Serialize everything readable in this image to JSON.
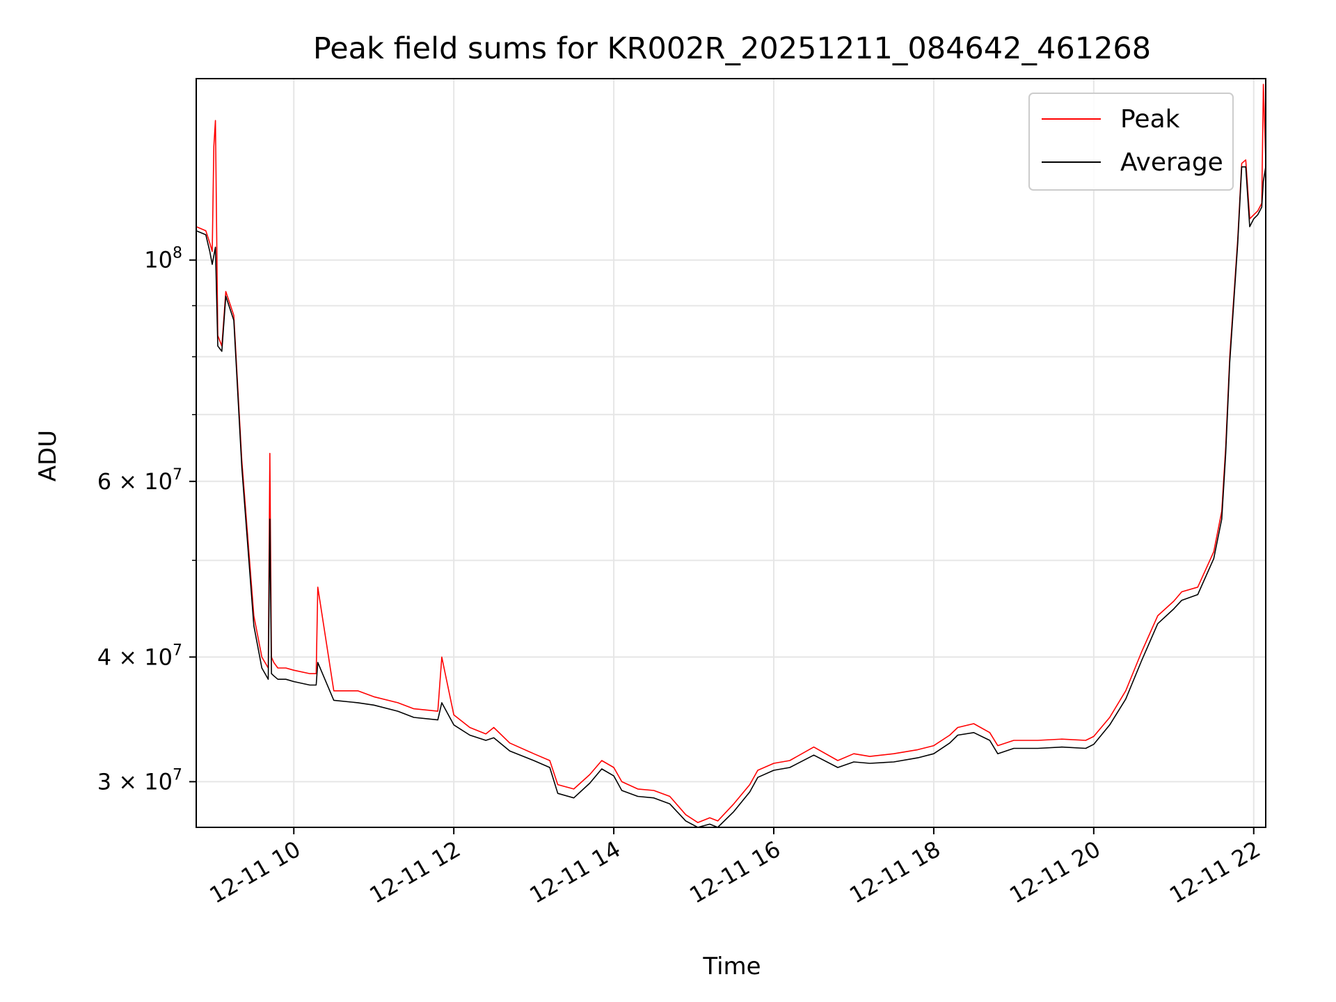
{
  "chart_data": {
    "type": "line",
    "title": "Peak field sums for KR002R_20251211_084642_461268",
    "xlabel": "Time",
    "ylabel": "ADU",
    "yscale": "log",
    "grid": true,
    "legend_position": "upper right",
    "xlim_hours": [
      8.78,
      22.15
    ],
    "ylim": [
      27000000,
      152000000
    ],
    "x_ticks": [
      {
        "value": 10,
        "label": "12-11 10"
      },
      {
        "value": 12,
        "label": "12-11 12"
      },
      {
        "value": 14,
        "label": "12-11 14"
      },
      {
        "value": 16,
        "label": "12-11 16"
      },
      {
        "value": 18,
        "label": "12-11 18"
      },
      {
        "value": 20,
        "label": "12-11 20"
      },
      {
        "value": 22,
        "label": "12-11 22"
      }
    ],
    "y_major_ticks": [
      {
        "value": 30000000,
        "label": "3 × 10",
        "exp": "7"
      },
      {
        "value": 40000000,
        "label": "4 × 10",
        "exp": "7"
      },
      {
        "value": 60000000,
        "label": "6 × 10",
        "exp": "7"
      },
      {
        "value": 100000000,
        "label": "10",
        "exp": "8"
      }
    ],
    "y_minor_ticks": [
      50000000,
      70000000,
      80000000,
      90000000
    ],
    "series": [
      {
        "name": "Peak",
        "color": "#ff0000",
        "x": [
          8.78,
          8.9,
          8.95,
          8.98,
          9.0,
          9.02,
          9.05,
          9.1,
          9.15,
          9.25,
          9.35,
          9.5,
          9.6,
          9.68,
          9.7,
          9.72,
          9.75,
          9.8,
          9.9,
          10.0,
          10.2,
          10.28,
          10.3,
          10.5,
          10.8,
          11.0,
          11.3,
          11.5,
          11.8,
          11.85,
          12.0,
          12.2,
          12.4,
          12.5,
          12.7,
          13.0,
          13.2,
          13.3,
          13.5,
          13.7,
          13.85,
          14.0,
          14.1,
          14.3,
          14.5,
          14.7,
          14.9,
          15.05,
          15.2,
          15.3,
          15.5,
          15.7,
          15.8,
          16.0,
          16.2,
          16.5,
          16.8,
          17.0,
          17.2,
          17.5,
          17.8,
          18.0,
          18.2,
          18.3,
          18.5,
          18.7,
          18.8,
          19.0,
          19.3,
          19.6,
          19.9,
          20.0,
          20.2,
          20.4,
          20.6,
          20.8,
          21.0,
          21.1,
          21.3,
          21.5,
          21.6,
          21.65,
          21.7,
          21.8,
          21.85,
          21.9,
          21.95,
          22.0,
          22.05,
          22.1,
          22.12,
          22.15
        ],
        "values": [
          108000000,
          107000000,
          104000000,
          102000000,
          130000000,
          138000000,
          84000000,
          82000000,
          93000000,
          88000000,
          63000000,
          44000000,
          40000000,
          39000000,
          64000000,
          40000000,
          39500000,
          39000000,
          39000000,
          38800000,
          38500000,
          38500000,
          47000000,
          37000000,
          37000000,
          36500000,
          36000000,
          35500000,
          35300000,
          40000000,
          35000000,
          34000000,
          33500000,
          34000000,
          32800000,
          32000000,
          31500000,
          29800000,
          29500000,
          30500000,
          31500000,
          31000000,
          30000000,
          29500000,
          29400000,
          29000000,
          27800000,
          27300000,
          27600000,
          27400000,
          28500000,
          29800000,
          30800000,
          31300000,
          31500000,
          32500000,
          31500000,
          32000000,
          31800000,
          32000000,
          32300000,
          32600000,
          33400000,
          34000000,
          34300000,
          33600000,
          32600000,
          33000000,
          33000000,
          33100000,
          33000000,
          33300000,
          34800000,
          37000000,
          40500000,
          44000000,
          45500000,
          46500000,
          47000000,
          51000000,
          56000000,
          65000000,
          80000000,
          105000000,
          125000000,
          126000000,
          110000000,
          111000000,
          112000000,
          114000000,
          150000000,
          126000000
        ]
      },
      {
        "name": "Average",
        "color": "#000000",
        "x": [
          8.78,
          8.9,
          8.95,
          8.98,
          9.0,
          9.02,
          9.05,
          9.1,
          9.15,
          9.25,
          9.35,
          9.5,
          9.6,
          9.68,
          9.7,
          9.72,
          9.75,
          9.8,
          9.9,
          10.0,
          10.2,
          10.28,
          10.3,
          10.5,
          10.8,
          11.0,
          11.3,
          11.5,
          11.8,
          11.85,
          12.0,
          12.2,
          12.4,
          12.5,
          12.7,
          13.0,
          13.2,
          13.3,
          13.5,
          13.7,
          13.85,
          14.0,
          14.1,
          14.3,
          14.5,
          14.7,
          14.9,
          15.05,
          15.2,
          15.3,
          15.5,
          15.7,
          15.8,
          16.0,
          16.2,
          16.5,
          16.8,
          17.0,
          17.2,
          17.5,
          17.8,
          18.0,
          18.2,
          18.3,
          18.5,
          18.7,
          18.8,
          19.0,
          19.3,
          19.6,
          19.9,
          20.0,
          20.2,
          20.4,
          20.6,
          20.8,
          21.0,
          21.1,
          21.3,
          21.5,
          21.6,
          21.65,
          21.7,
          21.8,
          21.85,
          21.9,
          21.95,
          22.0,
          22.05,
          22.1,
          22.12,
          22.15
        ],
        "values": [
          107000000,
          106000000,
          102000000,
          99000000,
          101000000,
          103000000,
          82000000,
          81000000,
          92000000,
          87000000,
          62000000,
          43000000,
          39000000,
          38000000,
          55000000,
          38500000,
          38300000,
          38000000,
          38000000,
          37800000,
          37500000,
          37500000,
          39500000,
          36200000,
          36000000,
          35800000,
          35300000,
          34800000,
          34600000,
          36000000,
          34200000,
          33400000,
          33000000,
          33200000,
          32200000,
          31500000,
          31000000,
          29200000,
          28900000,
          29900000,
          30900000,
          30400000,
          29400000,
          29000000,
          28900000,
          28500000,
          27400000,
          27000000,
          27200000,
          27000000,
          28000000,
          29300000,
          30300000,
          30800000,
          31000000,
          31900000,
          31000000,
          31400000,
          31300000,
          31400000,
          31700000,
          32000000,
          32800000,
          33400000,
          33600000,
          33000000,
          32000000,
          32400000,
          32400000,
          32500000,
          32400000,
          32700000,
          34200000,
          36300000,
          39700000,
          43200000,
          44700000,
          45600000,
          46200000,
          50200000,
          55000000,
          64000000,
          79000000,
          104000000,
          124000000,
          124000000,
          108000000,
          110000000,
          111000000,
          113000000,
          120000000,
          124000000
        ]
      }
    ]
  }
}
